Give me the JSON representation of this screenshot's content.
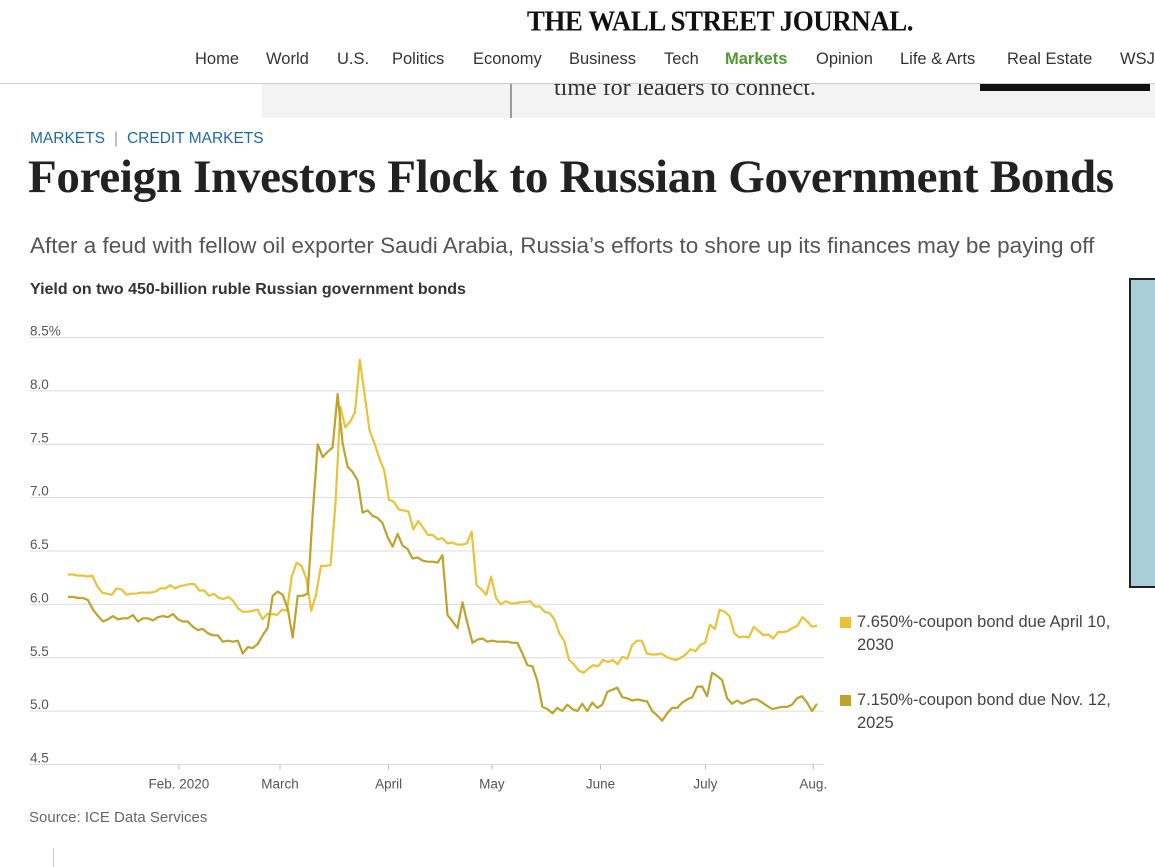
{
  "masthead": "THE WALL STREET JOURNAL.",
  "nav": {
    "items": [
      "Home",
      "World",
      "U.S.",
      "Politics",
      "Economy",
      "Business",
      "Tech",
      "Markets",
      "Opinion",
      "Life & Arts",
      "Real Estate",
      "WSJ"
    ],
    "active": "Markets"
  },
  "ad": {
    "text": "time for leaders to connect."
  },
  "breadcrumb": {
    "section": "MARKETS",
    "subsection": "CREDIT MARKETS"
  },
  "article": {
    "headline": "Foreign Investors Flock to Russian Government Bonds",
    "dek": "After a feud with fellow oil exporter Saudi Arabia, Russia’s efforts to shore up its finances may be paying off"
  },
  "colors": {
    "accent_green": "#4d9a2f",
    "link_blue": "#1f6aa5",
    "series_light": "#e8c33a",
    "series_dark": "#bfa22c"
  },
  "chart_data": {
    "type": "line",
    "title": "Yield on two 450-billion ruble Russian government bonds",
    "source": "Source: ICE Data Services",
    "ylim": [
      4.5,
      8.5
    ],
    "ytick_labels": [
      "8.5%",
      "8.0",
      "7.5",
      "7.0",
      "6.5",
      "6.0",
      "5.5",
      "5.0",
      "4.5"
    ],
    "xtick_labels": [
      "Feb. 2020",
      "March",
      "April",
      "May",
      "June",
      "July",
      "Aug."
    ],
    "grid": true,
    "legend_position": "right",
    "series": [
      {
        "name": "7.650%-coupon bond due April 10, 2030",
        "color": "#e8c33a",
        "values": [
          6.28,
          6.28,
          6.27,
          6.27,
          6.26,
          6.27,
          6.17,
          6.11,
          6.1,
          6.09,
          6.15,
          6.14,
          6.09,
          6.1,
          6.1,
          6.11,
          6.11,
          6.11,
          6.12,
          6.15,
          6.15,
          6.18,
          6.15,
          6.17,
          6.18,
          6.19,
          6.19,
          6.13,
          6.13,
          6.08,
          6.1,
          6.06,
          6.05,
          6.07,
          6.03,
          5.96,
          5.93,
          5.93,
          5.94,
          5.95,
          5.86,
          5.91,
          5.91,
          5.9,
          5.95,
          5.94,
          6.26,
          6.39,
          6.36,
          6.24,
          5.94,
          6.09,
          6.36,
          6.36,
          6.37,
          6.95,
          7.85,
          7.66,
          7.71,
          7.8,
          8.29,
          7.96,
          7.63,
          7.51,
          7.37,
          7.26,
          6.98,
          6.96,
          6.89,
          6.88,
          6.87,
          6.7,
          6.78,
          6.72,
          6.65,
          6.65,
          6.61,
          6.62,
          6.57,
          6.58,
          6.56,
          6.56,
          6.57,
          6.68,
          6.18,
          6.14,
          6.09,
          6.26,
          6.06,
          6.0,
          6.03,
          6.01,
          6.01,
          6.02,
          6.02,
          6.03,
          5.98,
          5.98,
          5.93,
          5.92,
          5.86,
          5.73,
          5.66,
          5.48,
          5.44,
          5.38,
          5.36,
          5.4,
          5.43,
          5.42,
          5.48,
          5.46,
          5.48,
          5.44,
          5.51,
          5.49,
          5.62,
          5.66,
          5.66,
          5.54,
          5.53,
          5.53,
          5.54,
          5.51,
          5.49,
          5.48,
          5.5,
          5.53,
          5.58,
          5.56,
          5.62,
          5.64,
          5.81,
          5.77,
          5.95,
          5.93,
          5.89,
          5.73,
          5.69,
          5.7,
          5.69,
          5.79,
          5.75,
          5.71,
          5.72,
          5.68,
          5.74,
          5.74,
          5.75,
          5.78,
          5.8,
          5.88,
          5.84,
          5.79,
          5.8
        ]
      },
      {
        "name": "7.150%-coupon bond due Nov. 12, 2025",
        "color": "#bfa22c",
        "values": [
          6.07,
          6.07,
          6.06,
          6.06,
          6.04,
          5.95,
          5.89,
          5.84,
          5.86,
          5.89,
          5.86,
          5.87,
          5.87,
          5.9,
          5.84,
          5.87,
          5.87,
          5.85,
          5.88,
          5.89,
          5.88,
          5.91,
          5.86,
          5.84,
          5.84,
          5.79,
          5.76,
          5.77,
          5.73,
          5.71,
          5.71,
          5.65,
          5.66,
          5.65,
          5.66,
          5.54,
          5.6,
          5.59,
          5.63,
          5.71,
          5.78,
          6.08,
          6.12,
          6.09,
          5.96,
          5.69,
          6.08,
          6.08,
          6.1,
          6.85,
          7.5,
          7.38,
          7.43,
          7.47,
          7.97,
          7.51,
          7.29,
          7.24,
          7.16,
          6.86,
          6.88,
          6.83,
          6.81,
          6.76,
          6.63,
          6.54,
          6.66,
          6.55,
          6.52,
          6.43,
          6.44,
          6.41,
          6.4,
          6.4,
          6.39,
          6.46,
          5.9,
          5.84,
          5.78,
          6.02,
          5.82,
          5.64,
          5.67,
          5.68,
          5.65,
          5.66,
          5.65,
          5.65,
          5.65,
          5.64,
          5.64,
          5.54,
          5.43,
          5.42,
          5.28,
          5.04,
          5.02,
          4.98,
          5.03,
          5.0,
          5.06,
          5.02,
          5.0,
          5.07,
          5.0,
          5.08,
          5.03,
          5.06,
          5.18,
          5.2,
          5.22,
          5.13,
          5.12,
          5.1,
          5.11,
          5.1,
          5.09,
          5.0,
          4.96,
          4.91,
          4.98,
          5.03,
          5.03,
          5.08,
          5.11,
          5.13,
          5.23,
          5.23,
          5.14,
          5.36,
          5.33,
          5.29,
          5.12,
          5.07,
          5.1,
          5.07,
          5.09,
          5.11,
          5.11,
          5.08,
          5.05,
          5.02,
          5.03,
          5.04,
          5.04,
          5.06,
          5.12,
          5.14,
          5.08,
          5.0,
          5.07
        ]
      }
    ]
  }
}
